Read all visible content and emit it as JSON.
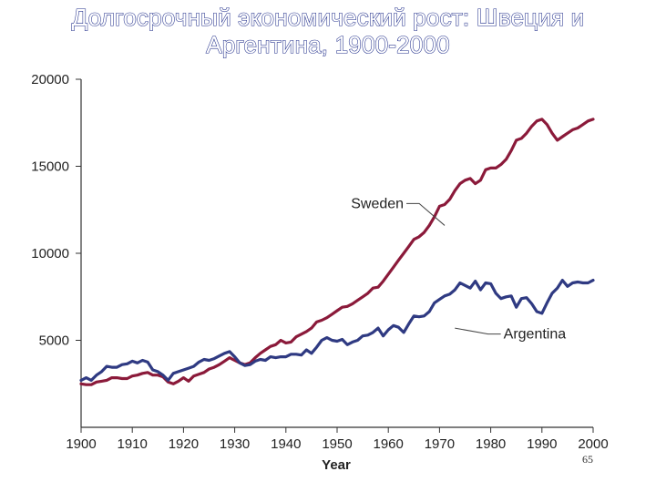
{
  "slide": {
    "title_line1": "Долгосрочный экономический рост: Швеция и",
    "title_line2": "Аргентина, 1900-2000",
    "page_number": "65"
  },
  "chart_data": {
    "type": "line",
    "xlabel": "Year",
    "ylabel": "",
    "xlim": [
      1900,
      2000
    ],
    "ylim": [
      0,
      20000
    ],
    "x_ticks": [
      1900,
      1910,
      1920,
      1930,
      1940,
      1950,
      1960,
      1970,
      1980,
      1990,
      2000
    ],
    "y_ticks": [
      5000,
      10000,
      15000,
      20000
    ],
    "grid": false,
    "legend": "none",
    "series": [
      {
        "name": "Sweden",
        "color": "#8b1a3a",
        "label_year": 1963,
        "label_value": 12600,
        "leader_to": [
          1971,
          11600
        ],
        "points": [
          [
            1900,
            2500
          ],
          [
            1901,
            2450
          ],
          [
            1902,
            2450
          ],
          [
            1903,
            2600
          ],
          [
            1904,
            2650
          ],
          [
            1905,
            2700
          ],
          [
            1906,
            2850
          ],
          [
            1907,
            2850
          ],
          [
            1908,
            2800
          ],
          [
            1909,
            2800
          ],
          [
            1910,
            2950
          ],
          [
            1911,
            3000
          ],
          [
            1912,
            3100
          ],
          [
            1913,
            3150
          ],
          [
            1914,
            3000
          ],
          [
            1915,
            3000
          ],
          [
            1916,
            2900
          ],
          [
            1917,
            2600
          ],
          [
            1918,
            2500
          ],
          [
            1919,
            2650
          ],
          [
            1920,
            2850
          ],
          [
            1921,
            2650
          ],
          [
            1922,
            2950
          ],
          [
            1923,
            3050
          ],
          [
            1924,
            3150
          ],
          [
            1925,
            3350
          ],
          [
            1926,
            3450
          ],
          [
            1927,
            3600
          ],
          [
            1928,
            3800
          ],
          [
            1929,
            4000
          ],
          [
            1930,
            3850
          ],
          [
            1931,
            3700
          ],
          [
            1932,
            3600
          ],
          [
            1933,
            3700
          ],
          [
            1934,
            4000
          ],
          [
            1935,
            4250
          ],
          [
            1936,
            4450
          ],
          [
            1937,
            4650
          ],
          [
            1938,
            4750
          ],
          [
            1939,
            5000
          ],
          [
            1940,
            4850
          ],
          [
            1941,
            4900
          ],
          [
            1942,
            5200
          ],
          [
            1943,
            5350
          ],
          [
            1944,
            5500
          ],
          [
            1945,
            5700
          ],
          [
            1946,
            6050
          ],
          [
            1947,
            6150
          ],
          [
            1948,
            6300
          ],
          [
            1949,
            6500
          ],
          [
            1950,
            6700
          ],
          [
            1951,
            6900
          ],
          [
            1952,
            6950
          ],
          [
            1953,
            7100
          ],
          [
            1954,
            7300
          ],
          [
            1955,
            7500
          ],
          [
            1956,
            7700
          ],
          [
            1957,
            8000
          ],
          [
            1958,
            8050
          ],
          [
            1959,
            8400
          ],
          [
            1960,
            8800
          ],
          [
            1961,
            9200
          ],
          [
            1962,
            9600
          ],
          [
            1963,
            10000
          ],
          [
            1964,
            10400
          ],
          [
            1965,
            10800
          ],
          [
            1966,
            10950
          ],
          [
            1967,
            11200
          ],
          [
            1968,
            11600
          ],
          [
            1969,
            12100
          ],
          [
            1970,
            12700
          ],
          [
            1971,
            12800
          ],
          [
            1972,
            13100
          ],
          [
            1973,
            13600
          ],
          [
            1974,
            14000
          ],
          [
            1975,
            14200
          ],
          [
            1976,
            14300
          ],
          [
            1977,
            14000
          ],
          [
            1978,
            14200
          ],
          [
            1979,
            14800
          ],
          [
            1980,
            14900
          ],
          [
            1981,
            14900
          ],
          [
            1982,
            15100
          ],
          [
            1983,
            15400
          ],
          [
            1984,
            15900
          ],
          [
            1985,
            16500
          ],
          [
            1986,
            16600
          ],
          [
            1987,
            16900
          ],
          [
            1988,
            17300
          ],
          [
            1989,
            17600
          ],
          [
            1990,
            17700
          ],
          [
            1991,
            17400
          ],
          [
            1992,
            16900
          ],
          [
            1993,
            16500
          ],
          [
            1994,
            16700
          ],
          [
            1995,
            16900
          ],
          [
            1996,
            17100
          ],
          [
            1997,
            17200
          ],
          [
            1998,
            17400
          ],
          [
            1999,
            17600
          ],
          [
            2000,
            17700
          ]
        ]
      },
      {
        "name": "Argentina",
        "color": "#2f3a82",
        "label_year": 1982.5,
        "label_value": 5100,
        "leader_to": [
          1973,
          5700
        ],
        "points": [
          [
            1900,
            2700
          ],
          [
            1901,
            2850
          ],
          [
            1902,
            2700
          ],
          [
            1903,
            3000
          ],
          [
            1904,
            3200
          ],
          [
            1905,
            3500
          ],
          [
            1906,
            3450
          ],
          [
            1907,
            3450
          ],
          [
            1908,
            3600
          ],
          [
            1909,
            3650
          ],
          [
            1910,
            3800
          ],
          [
            1911,
            3700
          ],
          [
            1912,
            3850
          ],
          [
            1913,
            3750
          ],
          [
            1914,
            3300
          ],
          [
            1915,
            3200
          ],
          [
            1916,
            3000
          ],
          [
            1917,
            2700
          ],
          [
            1918,
            3100
          ],
          [
            1919,
            3200
          ],
          [
            1920,
            3300
          ],
          [
            1921,
            3400
          ],
          [
            1922,
            3500
          ],
          [
            1923,
            3750
          ],
          [
            1924,
            3900
          ],
          [
            1925,
            3850
          ],
          [
            1926,
            3950
          ],
          [
            1927,
            4100
          ],
          [
            1928,
            4250
          ],
          [
            1929,
            4350
          ],
          [
            1930,
            4050
          ],
          [
            1931,
            3700
          ],
          [
            1932,
            3550
          ],
          [
            1933,
            3600
          ],
          [
            1934,
            3800
          ],
          [
            1935,
            3900
          ],
          [
            1936,
            3850
          ],
          [
            1937,
            4050
          ],
          [
            1938,
            4000
          ],
          [
            1939,
            4050
          ],
          [
            1940,
            4050
          ],
          [
            1941,
            4200
          ],
          [
            1942,
            4200
          ],
          [
            1943,
            4150
          ],
          [
            1944,
            4450
          ],
          [
            1945,
            4250
          ],
          [
            1946,
            4600
          ],
          [
            1947,
            5000
          ],
          [
            1948,
            5150
          ],
          [
            1949,
            5000
          ],
          [
            1950,
            4950
          ],
          [
            1951,
            5050
          ],
          [
            1952,
            4750
          ],
          [
            1953,
            4900
          ],
          [
            1954,
            5000
          ],
          [
            1955,
            5250
          ],
          [
            1956,
            5300
          ],
          [
            1957,
            5450
          ],
          [
            1958,
            5700
          ],
          [
            1959,
            5250
          ],
          [
            1960,
            5600
          ],
          [
            1961,
            5850
          ],
          [
            1962,
            5750
          ],
          [
            1963,
            5450
          ],
          [
            1964,
            5950
          ],
          [
            1965,
            6400
          ],
          [
            1966,
            6350
          ],
          [
            1967,
            6400
          ],
          [
            1968,
            6650
          ],
          [
            1969,
            7150
          ],
          [
            1970,
            7350
          ],
          [
            1971,
            7550
          ],
          [
            1972,
            7650
          ],
          [
            1973,
            7900
          ],
          [
            1974,
            8300
          ],
          [
            1975,
            8150
          ],
          [
            1976,
            8000
          ],
          [
            1977,
            8400
          ],
          [
            1978,
            7900
          ],
          [
            1979,
            8300
          ],
          [
            1980,
            8250
          ],
          [
            1981,
            7700
          ],
          [
            1982,
            7400
          ],
          [
            1983,
            7500
          ],
          [
            1984,
            7550
          ],
          [
            1985,
            6900
          ],
          [
            1986,
            7400
          ],
          [
            1987,
            7450
          ],
          [
            1988,
            7100
          ],
          [
            1989,
            6650
          ],
          [
            1990,
            6550
          ],
          [
            1991,
            7150
          ],
          [
            1992,
            7700
          ],
          [
            1993,
            8000
          ],
          [
            1994,
            8450
          ],
          [
            1995,
            8100
          ],
          [
            1996,
            8300
          ],
          [
            1997,
            8350
          ],
          [
            1998,
            8300
          ],
          [
            1999,
            8300
          ],
          [
            2000,
            8450
          ]
        ]
      }
    ]
  }
}
